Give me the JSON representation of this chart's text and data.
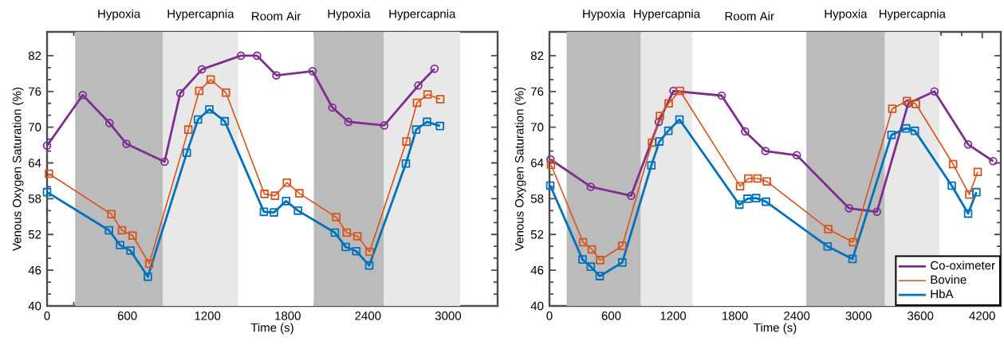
{
  "chart_data": [
    {
      "type": "line",
      "xlabel": "Time (s)",
      "ylabel": "Venous Oxygen Saturation (%)",
      "xlim": [
        0,
        3370
      ],
      "ylim": [
        40,
        86
      ],
      "xticks": [
        0,
        600,
        1200,
        1800,
        2400,
        3000
      ],
      "yticks": [
        40,
        46,
        52,
        58,
        64,
        70,
        76,
        82
      ],
      "bands": [
        {
          "axis": "x",
          "from": 210,
          "to": 865,
          "label": "Hypoxia",
          "color": "#bbbbbb"
        },
        {
          "axis": "x",
          "from": 865,
          "to": 1430,
          "label": "Hypercapnia",
          "color": "#e8e8e8"
        },
        {
          "axis": "x",
          "from": 1430,
          "to": 1995,
          "label": "Room Air",
          "color": "#ffffff"
        },
        {
          "axis": "x",
          "from": 1995,
          "to": 2520,
          "label": "Hypoxia",
          "color": "#bbbbbb"
        },
        {
          "axis": "x",
          "from": 2520,
          "to": 3090,
          "label": "Hypercapnia",
          "color": "#e8e8e8"
        }
      ],
      "series": [
        {
          "color": "#7e2f8e",
          "marker": "circle",
          "x": [
            0,
            267,
            467,
            594,
            879,
            996,
            1158,
            1450,
            1571,
            1715,
            1986,
            2134,
            2254,
            2522,
            2777,
            2898
          ],
          "values": [
            66.9,
            75.4,
            70.7,
            67.2,
            64.2,
            75.7,
            79.7,
            82.0,
            82.0,
            78.7,
            79.4,
            73.3,
            70.9,
            70.3,
            77.0,
            79.8
          ]
        },
        {
          "color": "#d95319",
          "marker": "square",
          "x": [
            14,
            481,
            560,
            640,
            764,
            1057,
            1138,
            1224,
            1338,
            1626,
            1705,
            1794,
            1887,
            2163,
            2242,
            2321,
            2412,
            2688,
            2767,
            2846,
            2941
          ],
          "values": [
            62.2,
            55.4,
            52.7,
            51.8,
            47.1,
            69.6,
            76.1,
            78.0,
            75.8,
            58.8,
            58.5,
            60.7,
            58.9,
            54.9,
            52.3,
            51.7,
            49.1,
            67.6,
            74.1,
            75.5,
            74.7
          ]
        },
        {
          "color": "#0072bd",
          "marker": "square",
          "x": [
            0,
            463,
            546,
            624,
            754,
            1045,
            1129,
            1214,
            1329,
            1622,
            1697,
            1788,
            1877,
            2153,
            2234,
            2313,
            2410,
            2684,
            2761,
            2842,
            2939
          ],
          "values": [
            59.1,
            52.7,
            50.2,
            49.3,
            44.9,
            65.7,
            71.3,
            73.0,
            71.0,
            55.8,
            55.7,
            57.6,
            56.0,
            52.3,
            49.9,
            49.2,
            46.8,
            63.9,
            69.6,
            70.9,
            70.2
          ]
        }
      ]
    },
    {
      "type": "line",
      "xlabel": "Time (s)",
      "ylabel": "Venous Oxygen Saturation (%)",
      "xlim": [
        0,
        4380
      ],
      "ylim": [
        40,
        86
      ],
      "xticks": [
        0,
        600,
        1200,
        1800,
        2400,
        3000,
        3600,
        4200
      ],
      "yticks": [
        40,
        46,
        52,
        58,
        64,
        70,
        76,
        82
      ],
      "legend": "bottom right",
      "bands": [
        {
          "axis": "x",
          "from": 167,
          "to": 887,
          "label": "Hypoxia",
          "color": "#bbbbbb"
        },
        {
          "axis": "x",
          "from": 887,
          "to": 1388,
          "label": "Hypercapnia",
          "color": "#e8e8e8"
        },
        {
          "axis": "x",
          "from": 1388,
          "to": 2493,
          "label": "Room Air",
          "color": "#ffffff"
        },
        {
          "axis": "x",
          "from": 2493,
          "to": 3255,
          "label": "Hypoxia",
          "color": "#bbbbbb"
        },
        {
          "axis": "x",
          "from": 3255,
          "to": 3785,
          "label": "Hypercapnia",
          "color": "#e8e8e8"
        }
      ],
      "series": [
        {
          "name": "Co-oximeter",
          "color": "#7e2f8e",
          "marker": "circle",
          "x": [
            10,
            401,
            792,
            1061,
            1203,
            1671,
            1899,
            2096,
            2400,
            2907,
            3178,
            3482,
            3736,
            4063,
            4306
          ],
          "values": [
            64.6,
            60.0,
            58.5,
            70.9,
            76.1,
            75.3,
            69.3,
            66.0,
            65.3,
            56.4,
            55.8,
            74.0,
            76.0,
            67.1,
            64.3
          ]
        },
        {
          "name": "Bovine",
          "color": "#d95319",
          "marker": "square",
          "x": [
            15,
            326,
            411,
            491,
            707,
            995,
            1072,
            1157,
            1267,
            1850,
            1930,
            2019,
            2109,
            2706,
            2946,
            3327,
            3469,
            3556,
            3917,
            4074,
            4156
          ],
          "values": [
            63.7,
            50.7,
            49.5,
            47.7,
            50.1,
            67.4,
            71.9,
            74.0,
            76.1,
            60.1,
            61.4,
            61.4,
            60.9,
            52.9,
            50.7,
            73.1,
            74.4,
            73.9,
            63.8,
            58.7,
            62.5
          ]
        },
        {
          "name": "HbA",
          "color": "#0072bd",
          "marker": "square",
          "x": [
            8,
            321,
            401,
            488,
            707,
            989,
            1067,
            1154,
            1262,
            1843,
            1922,
            2006,
            2101,
            2699,
            2941,
            3319,
            3461,
            3546,
            3904,
            4063,
            4143
          ],
          "values": [
            60.2,
            47.8,
            46.6,
            45.0,
            47.3,
            63.6,
            67.6,
            69.4,
            71.3,
            57.0,
            58.0,
            58.1,
            57.5,
            50.0,
            47.9,
            68.7,
            69.8,
            69.4,
            60.2,
            55.5,
            59.1
          ]
        }
      ]
    }
  ]
}
